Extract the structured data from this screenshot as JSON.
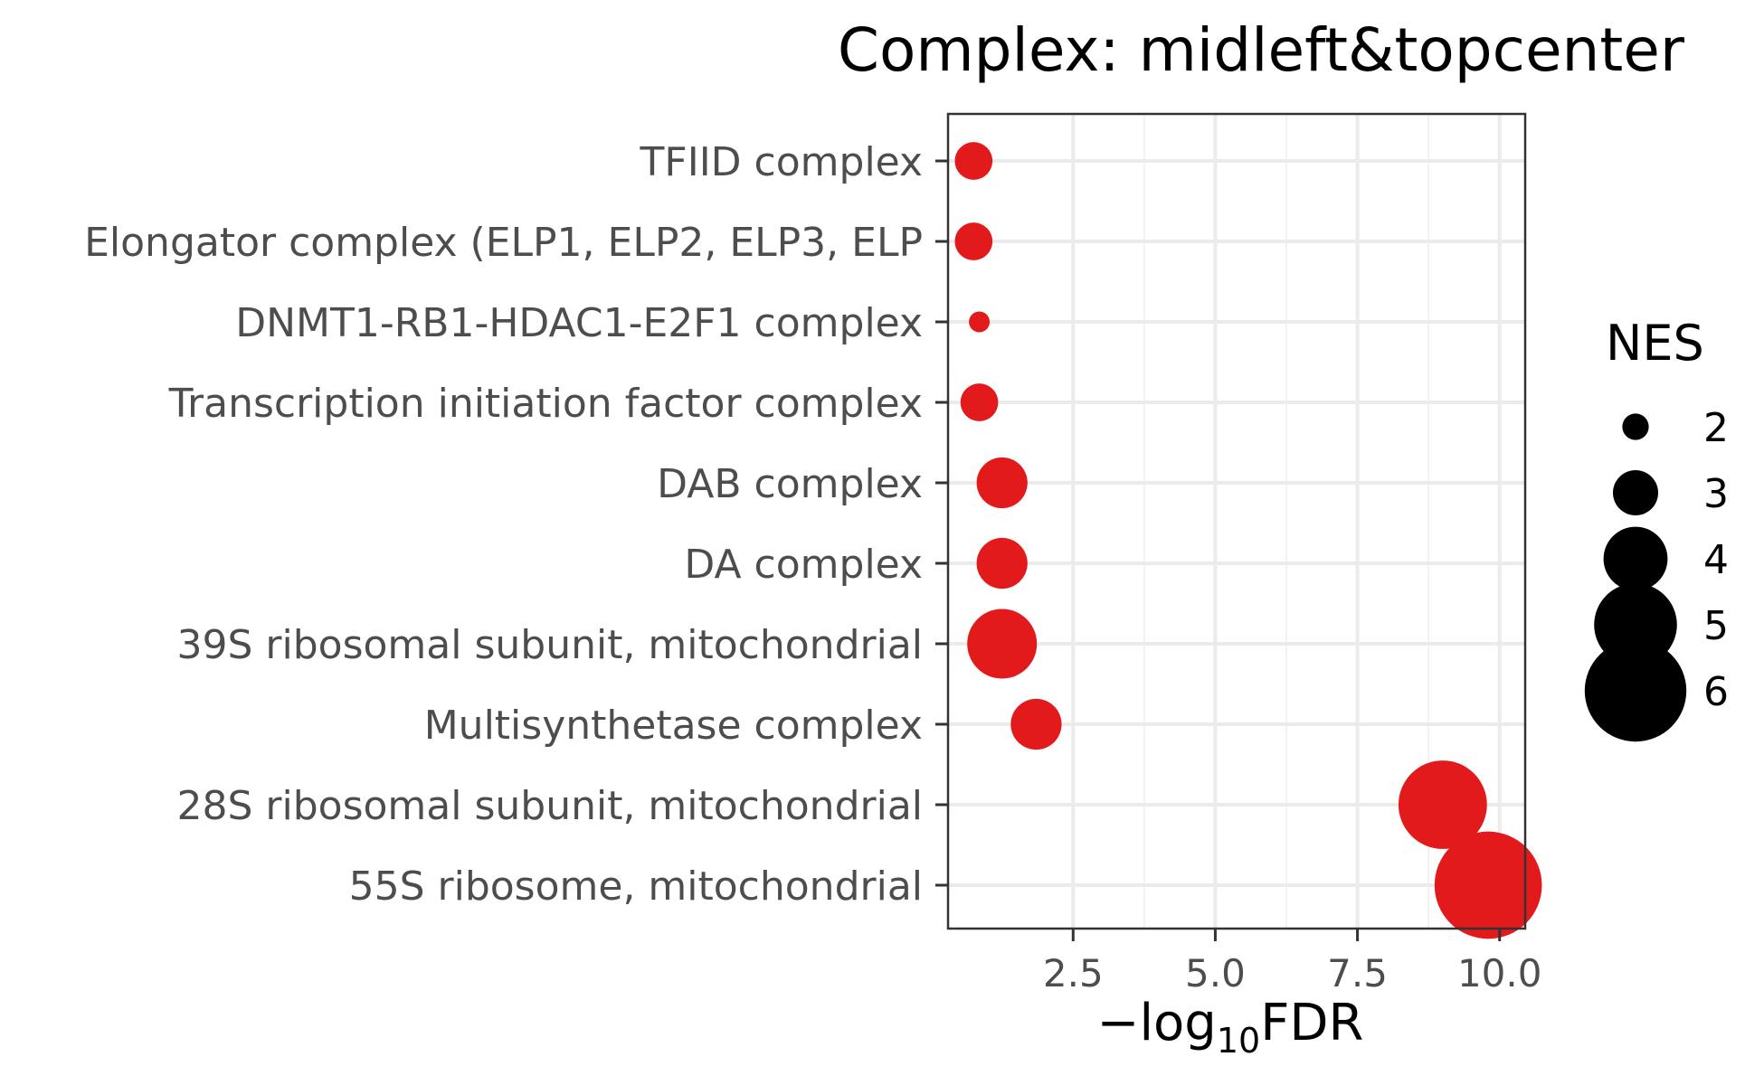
{
  "chart_data": {
    "type": "scatter",
    "title": "Complex: midleft&topcenter",
    "xlabel": "−log10FDR",
    "xlabel_parts": {
      "prefix": "−log",
      "subscript": "10",
      "suffix": "FDR"
    },
    "ylabel": "",
    "xlim": [
      0.3,
      10.45
    ],
    "x_ticks": [
      2.5,
      5.0,
      7.5,
      10.0
    ],
    "x_tick_labels": [
      "2.5",
      "5.0",
      "7.5",
      "10.0"
    ],
    "grid": true,
    "point_color": "#e31a1c",
    "categories": [
      "TFIID complex",
      "Elongator complex (ELP1, ELP2, ELP3, ELP",
      "DNMT1-RB1-HDAC1-E2F1 complex",
      "Transcription initiation factor complex ",
      "DAB complex",
      "DA complex",
      "39S ribosomal subunit, mitochondrial",
      "Multisynthetase complex",
      "28S ribosomal subunit, mitochondrial",
      "55S ribosome, mitochondrial"
    ],
    "x": [
      0.75,
      0.75,
      0.85,
      0.85,
      1.25,
      1.25,
      1.25,
      1.85,
      9.0,
      9.8
    ],
    "size": [
      2.6,
      2.6,
      1.7,
      2.6,
      3.3,
      3.3,
      4.3,
      3.3,
      5.3,
      6.3
    ],
    "legend": {
      "title": "NES",
      "placement": "right",
      "values": [
        2,
        3,
        4,
        5,
        6
      ],
      "labels": [
        "2",
        "3",
        "4",
        "5",
        "6"
      ]
    }
  }
}
